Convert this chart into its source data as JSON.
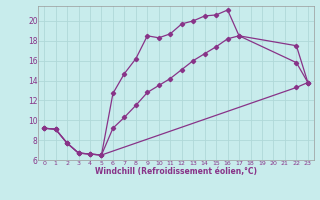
{
  "xlabel": "Windchill (Refroidissement éolien,°C)",
  "bg_color": "#c8ecec",
  "grid_color": "#b0d8d8",
  "line_color": "#883388",
  "xlim": [
    -0.5,
    23.5
  ],
  "ylim": [
    6,
    21.5
  ],
  "xticks": [
    0,
    1,
    2,
    3,
    4,
    5,
    6,
    7,
    8,
    9,
    10,
    11,
    12,
    13,
    14,
    15,
    16,
    17,
    18,
    19,
    20,
    21,
    22,
    23
  ],
  "yticks": [
    6,
    8,
    10,
    12,
    14,
    16,
    18,
    20
  ],
  "line1_x": [
    0,
    1,
    2,
    3,
    4,
    5,
    6,
    7,
    8,
    9,
    10,
    11,
    12,
    13,
    14,
    15,
    16,
    17,
    22,
    23
  ],
  "line1_y": [
    9.2,
    9.1,
    7.7,
    6.7,
    6.6,
    6.5,
    12.7,
    14.7,
    16.2,
    18.5,
    18.3,
    18.7,
    19.7,
    20.0,
    20.5,
    20.6,
    21.1,
    18.5,
    15.8,
    13.8
  ],
  "line2_x": [
    0,
    1,
    2,
    3,
    4,
    5,
    6,
    7,
    8,
    9,
    10,
    11,
    12,
    13,
    14,
    15,
    16,
    17,
    22,
    23
  ],
  "line2_y": [
    9.2,
    9.1,
    7.7,
    6.7,
    6.6,
    6.5,
    9.2,
    10.3,
    11.5,
    12.8,
    13.5,
    14.2,
    15.1,
    16.0,
    16.7,
    17.4,
    18.2,
    18.5,
    17.5,
    13.8
  ],
  "line3_x": [
    0,
    1,
    2,
    3,
    4,
    5,
    22,
    23
  ],
  "line3_y": [
    9.2,
    9.1,
    7.7,
    6.7,
    6.6,
    6.5,
    13.3,
    13.8
  ]
}
